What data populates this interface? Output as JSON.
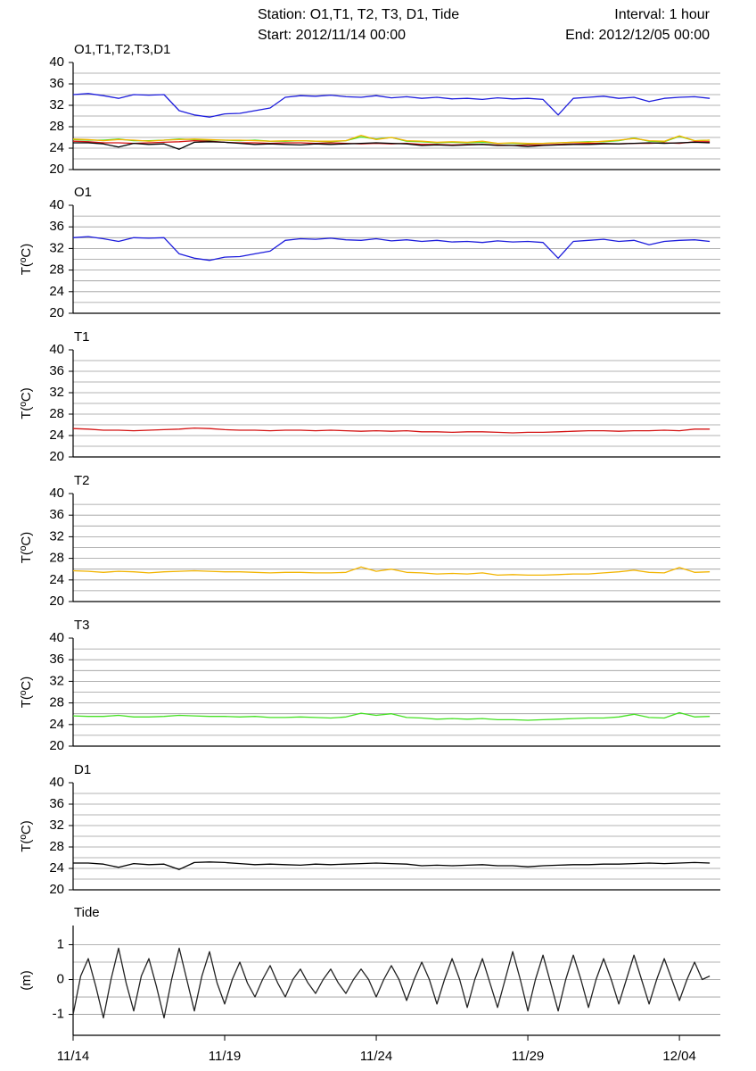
{
  "header": {
    "station": "Station: O1,T1, T2, T3, D1, Tide",
    "interval": "Interval: 1 hour",
    "start": "Start: 2012/11/14 00:00",
    "end": "End: 2012/12/05 00:00"
  },
  "chart_data": [
    {
      "type": "line",
      "title": "O1,T1,T2,T3,D1",
      "x": [
        0,
        0.5,
        1,
        1.5,
        2,
        2.5,
        3,
        3.5,
        4,
        4.5,
        5,
        5.5,
        6,
        6.5,
        7,
        7.5,
        8,
        8.5,
        9,
        9.5,
        10,
        10.5,
        11,
        11.5,
        12,
        12.5,
        13,
        13.5,
        14,
        14.5,
        15,
        15.5,
        16,
        16.5,
        17,
        17.5,
        18,
        18.5,
        19,
        19.5,
        20,
        20.5,
        21
      ],
      "series": [
        {
          "color": "#1c1cdc",
          "values": [
            34,
            34.2,
            33.8,
            33.3,
            34,
            33.9,
            34,
            31,
            30.2,
            29.8,
            30.4,
            30.5,
            31,
            31.5,
            33.5,
            33.8,
            33.7,
            33.9,
            33.6,
            33.5,
            33.8,
            33.4,
            33.6,
            33.3,
            33.5,
            33.2,
            33.3,
            33.1,
            33.4,
            33.2,
            33.3,
            33.1,
            30.2,
            33.3,
            33.5,
            33.7,
            33.3,
            33.5,
            32.7,
            33.3,
            33.5,
            33.6,
            33.3
          ]
        },
        {
          "color": "#44e022",
          "values": [
            25.6,
            25.5,
            25.5,
            25.7,
            25.4,
            25.4,
            25.5,
            25.7,
            25.6,
            25.5,
            25.5,
            25.4,
            25.5,
            25.3,
            25.3,
            25.4,
            25.3,
            25.2,
            25.4,
            26.1,
            25.7,
            26,
            25.3,
            25.2,
            25,
            25.1,
            25,
            25.1,
            24.9,
            24.9,
            24.8,
            24.9,
            25,
            25.1,
            25.2,
            25.2,
            25.4,
            25.9,
            25.3,
            25.2,
            26.2,
            25.4,
            25.5
          ]
        },
        {
          "color": "#f2b400",
          "values": [
            25.7,
            25.6,
            25.4,
            25.6,
            25.5,
            25.3,
            25.5,
            25.6,
            25.7,
            25.6,
            25.5,
            25.5,
            25.4,
            25.3,
            25.4,
            25.4,
            25.3,
            25.3,
            25.4,
            26.4,
            25.6,
            26,
            25.4,
            25.3,
            25.1,
            25.2,
            25.1,
            25.3,
            24.9,
            25,
            24.9,
            24.9,
            25,
            25.1,
            25.1,
            25.3,
            25.5,
            25.8,
            25.4,
            25.3,
            26.3,
            25.4,
            25.5
          ]
        },
        {
          "color": "#d41414",
          "values": [
            25.3,
            25.2,
            25,
            25,
            24.9,
            25,
            25.1,
            25.2,
            25.4,
            25.3,
            25.1,
            25,
            25,
            24.9,
            25,
            25,
            24.9,
            25,
            24.9,
            24.8,
            24.9,
            24.8,
            24.9,
            24.7,
            24.7,
            24.6,
            24.7,
            24.7,
            24.6,
            24.5,
            24.6,
            24.6,
            24.7,
            24.8,
            24.9,
            24.9,
            24.8,
            24.9,
            24.9,
            25,
            24.9,
            25.2,
            25.2
          ]
        },
        {
          "color": "#000000",
          "values": [
            25,
            25,
            24.8,
            24.2,
            24.9,
            24.7,
            24.8,
            23.8,
            25.1,
            25.2,
            25.1,
            24.9,
            24.7,
            24.8,
            24.7,
            24.6,
            24.8,
            24.7,
            24.8,
            24.9,
            25,
            24.9,
            24.8,
            24.5,
            24.6,
            24.5,
            24.6,
            24.7,
            24.5,
            24.5,
            24.3,
            24.5,
            24.6,
            24.7,
            24.7,
            24.8,
            24.8,
            24.9,
            25,
            24.9,
            25,
            25.1,
            25
          ]
        }
      ],
      "xlim": [
        0,
        21.35
      ],
      "ylim": [
        20,
        40
      ],
      "yticks": [
        20,
        24,
        28,
        32,
        36,
        40
      ],
      "ygrid": [
        22,
        24,
        26,
        28,
        30,
        32,
        34,
        36,
        38
      ]
    },
    {
      "type": "line",
      "title": "O1",
      "y_label": "T(ºC)",
      "x": [
        0,
        0.5,
        1,
        1.5,
        2,
        2.5,
        3,
        3.5,
        4,
        4.5,
        5,
        5.5,
        6,
        6.5,
        7,
        7.5,
        8,
        8.5,
        9,
        9.5,
        10,
        10.5,
        11,
        11.5,
        12,
        12.5,
        13,
        13.5,
        14,
        14.5,
        15,
        15.5,
        16,
        16.5,
        17,
        17.5,
        18,
        18.5,
        19,
        19.5,
        20,
        20.5,
        21
      ],
      "series": [
        {
          "color": "#1c1cdc",
          "values": [
            34,
            34.2,
            33.8,
            33.3,
            34,
            33.9,
            34,
            31,
            30.2,
            29.8,
            30.4,
            30.5,
            31,
            31.5,
            33.5,
            33.8,
            33.7,
            33.9,
            33.6,
            33.5,
            33.8,
            33.4,
            33.6,
            33.3,
            33.5,
            33.2,
            33.3,
            33.1,
            33.4,
            33.2,
            33.3,
            33.1,
            30.2,
            33.3,
            33.5,
            33.7,
            33.3,
            33.5,
            32.7,
            33.3,
            33.5,
            33.6,
            33.3
          ]
        }
      ],
      "xlim": [
        0,
        21.35
      ],
      "ylim": [
        20,
        40
      ],
      "yticks": [
        20,
        24,
        28,
        32,
        36,
        40
      ],
      "ygrid": [
        22,
        24,
        26,
        28,
        30,
        32,
        34,
        36,
        38
      ]
    },
    {
      "type": "line",
      "title": "T1",
      "y_label": "T(ºC)",
      "x": [
        0,
        0.5,
        1,
        1.5,
        2,
        2.5,
        3,
        3.5,
        4,
        4.5,
        5,
        5.5,
        6,
        6.5,
        7,
        7.5,
        8,
        8.5,
        9,
        9.5,
        10,
        10.5,
        11,
        11.5,
        12,
        12.5,
        13,
        13.5,
        14,
        14.5,
        15,
        15.5,
        16,
        16.5,
        17,
        17.5,
        18,
        18.5,
        19,
        19.5,
        20,
        20.5,
        21
      ],
      "series": [
        {
          "color": "#d41414",
          "values": [
            25.3,
            25.2,
            25,
            25,
            24.9,
            25,
            25.1,
            25.2,
            25.4,
            25.3,
            25.1,
            25,
            25,
            24.9,
            25,
            25,
            24.9,
            25,
            24.9,
            24.8,
            24.9,
            24.8,
            24.9,
            24.7,
            24.7,
            24.6,
            24.7,
            24.7,
            24.6,
            24.5,
            24.6,
            24.6,
            24.7,
            24.8,
            24.9,
            24.9,
            24.8,
            24.9,
            24.9,
            25,
            24.9,
            25.2,
            25.2
          ]
        }
      ],
      "xlim": [
        0,
        21.35
      ],
      "ylim": [
        20,
        40
      ],
      "yticks": [
        20,
        24,
        28,
        32,
        36,
        40
      ],
      "ygrid": [
        22,
        24,
        26,
        28,
        30,
        32,
        34,
        36,
        38
      ]
    },
    {
      "type": "line",
      "title": "T2",
      "y_label": "T(ºC)",
      "x": [
        0,
        0.5,
        1,
        1.5,
        2,
        2.5,
        3,
        3.5,
        4,
        4.5,
        5,
        5.5,
        6,
        6.5,
        7,
        7.5,
        8,
        8.5,
        9,
        9.5,
        10,
        10.5,
        11,
        11.5,
        12,
        12.5,
        13,
        13.5,
        14,
        14.5,
        15,
        15.5,
        16,
        16.5,
        17,
        17.5,
        18,
        18.5,
        19,
        19.5,
        20,
        20.5,
        21
      ],
      "series": [
        {
          "color": "#f2b400",
          "values": [
            25.7,
            25.6,
            25.4,
            25.6,
            25.5,
            25.3,
            25.5,
            25.6,
            25.7,
            25.6,
            25.5,
            25.5,
            25.4,
            25.3,
            25.4,
            25.4,
            25.3,
            25.3,
            25.4,
            26.4,
            25.6,
            26,
            25.4,
            25.3,
            25.1,
            25.2,
            25.1,
            25.3,
            24.9,
            25,
            24.9,
            24.9,
            25,
            25.1,
            25.1,
            25.3,
            25.5,
            25.8,
            25.4,
            25.3,
            26.3,
            25.4,
            25.5
          ]
        }
      ],
      "xlim": [
        0,
        21.35
      ],
      "ylim": [
        20,
        40
      ],
      "yticks": [
        20,
        24,
        28,
        32,
        36,
        40
      ],
      "ygrid": [
        22,
        24,
        26,
        28,
        30,
        32,
        34,
        36,
        38
      ]
    },
    {
      "type": "line",
      "title": "T3",
      "y_label": "T(ºC)",
      "x": [
        0,
        0.5,
        1,
        1.5,
        2,
        2.5,
        3,
        3.5,
        4,
        4.5,
        5,
        5.5,
        6,
        6.5,
        7,
        7.5,
        8,
        8.5,
        9,
        9.5,
        10,
        10.5,
        11,
        11.5,
        12,
        12.5,
        13,
        13.5,
        14,
        14.5,
        15,
        15.5,
        16,
        16.5,
        17,
        17.5,
        18,
        18.5,
        19,
        19.5,
        20,
        20.5,
        21
      ],
      "series": [
        {
          "color": "#44e022",
          "values": [
            25.6,
            25.5,
            25.5,
            25.7,
            25.4,
            25.4,
            25.5,
            25.7,
            25.6,
            25.5,
            25.5,
            25.4,
            25.5,
            25.3,
            25.3,
            25.4,
            25.3,
            25.2,
            25.4,
            26.1,
            25.7,
            26,
            25.3,
            25.2,
            25,
            25.1,
            25,
            25.1,
            24.9,
            24.9,
            24.8,
            24.9,
            25,
            25.1,
            25.2,
            25.2,
            25.4,
            25.9,
            25.3,
            25.2,
            26.2,
            25.4,
            25.5
          ]
        }
      ],
      "xlim": [
        0,
        21.35
      ],
      "ylim": [
        20,
        40
      ],
      "yticks": [
        20,
        24,
        28,
        32,
        36,
        40
      ],
      "ygrid": [
        22,
        24,
        26,
        28,
        30,
        32,
        34,
        36,
        38
      ]
    },
    {
      "type": "line",
      "title": "D1",
      "y_label": "T(ºC)",
      "x": [
        0,
        0.5,
        1,
        1.5,
        2,
        2.5,
        3,
        3.5,
        4,
        4.5,
        5,
        5.5,
        6,
        6.5,
        7,
        7.5,
        8,
        8.5,
        9,
        9.5,
        10,
        10.5,
        11,
        11.5,
        12,
        12.5,
        13,
        13.5,
        14,
        14.5,
        15,
        15.5,
        16,
        16.5,
        17,
        17.5,
        18,
        18.5,
        19,
        19.5,
        20,
        20.5,
        21
      ],
      "series": [
        {
          "color": "#000000",
          "values": [
            25,
            25,
            24.8,
            24.2,
            24.9,
            24.7,
            24.8,
            23.8,
            25.1,
            25.2,
            25.1,
            24.9,
            24.7,
            24.8,
            24.7,
            24.6,
            24.8,
            24.7,
            24.8,
            24.9,
            25,
            24.9,
            24.8,
            24.5,
            24.6,
            24.5,
            24.6,
            24.7,
            24.5,
            24.5,
            24.3,
            24.5,
            24.6,
            24.7,
            24.7,
            24.8,
            24.8,
            24.9,
            25,
            24.9,
            25,
            25.1,
            25
          ]
        }
      ],
      "xlim": [
        0,
        21.35
      ],
      "ylim": [
        20,
        40
      ],
      "yticks": [
        20,
        24,
        28,
        32,
        36,
        40
      ],
      "ygrid": [
        22,
        24,
        26,
        28,
        30,
        32,
        34,
        36,
        38
      ]
    },
    {
      "type": "line",
      "title": "Tide",
      "y_label": "(m)",
      "x": [
        0,
        0.25,
        0.5,
        0.75,
        1,
        1.25,
        1.5,
        1.75,
        2,
        2.25,
        2.5,
        2.75,
        3,
        3.25,
        3.5,
        3.75,
        4,
        4.25,
        4.5,
        4.75,
        5,
        5.25,
        5.5,
        5.75,
        6,
        6.25,
        6.5,
        6.75,
        7,
        7.25,
        7.5,
        7.75,
        8,
        8.25,
        8.5,
        8.75,
        9,
        9.25,
        9.5,
        9.75,
        10,
        10.25,
        10.5,
        10.75,
        11,
        11.25,
        11.5,
        11.75,
        12,
        12.25,
        12.5,
        12.75,
        13,
        13.25,
        13.5,
        13.75,
        14,
        14.25,
        14.5,
        14.75,
        15,
        15.25,
        15.5,
        15.75,
        16,
        16.25,
        16.5,
        16.75,
        17,
        17.25,
        17.5,
        17.75,
        18,
        18.25,
        18.5,
        18.75,
        19,
        19.25,
        19.5,
        19.75,
        20,
        20.25,
        20.5,
        20.75,
        21
      ],
      "series": [
        {
          "color": "#222222",
          "values": [
            -1.0,
            0.1,
            0.6,
            -0.2,
            -1.1,
            0.0,
            0.9,
            -0.1,
            -0.9,
            0.1,
            0.6,
            -0.2,
            -1.1,
            0.0,
            0.9,
            0.0,
            -0.9,
            0.1,
            0.8,
            -0.1,
            -0.7,
            0.0,
            0.5,
            -0.1,
            -0.5,
            0.0,
            0.4,
            -0.1,
            -0.5,
            0.0,
            0.3,
            -0.1,
            -0.4,
            0.0,
            0.3,
            -0.1,
            -0.4,
            0.0,
            0.3,
            0.0,
            -0.5,
            0.0,
            0.4,
            0.0,
            -0.6,
            0.0,
            0.5,
            0.0,
            -0.7,
            0.0,
            0.6,
            0.0,
            -0.8,
            0.0,
            0.6,
            -0.1,
            -0.8,
            0.0,
            0.8,
            0.0,
            -0.9,
            0.0,
            0.7,
            -0.1,
            -0.9,
            0.0,
            0.7,
            0.0,
            -0.8,
            0.0,
            0.6,
            0.0,
            -0.7,
            0.0,
            0.7,
            0.0,
            -0.7,
            0.0,
            0.6,
            0.0,
            -0.6,
            0.0,
            0.5,
            0.0,
            0.1
          ]
        }
      ],
      "xlim": [
        0,
        21.35
      ],
      "ylim": [
        -1.6,
        1.55
      ],
      "yticks": [
        -1,
        0,
        1
      ],
      "ygrid": [
        -1,
        -0.5,
        0,
        0.5,
        1
      ],
      "xticks": [
        {
          "value": 0,
          "label": "11/14"
        },
        {
          "value": 5,
          "label": "11/19"
        },
        {
          "value": 10,
          "label": "11/24"
        },
        {
          "value": 15,
          "label": "11/29"
        },
        {
          "value": 20,
          "label": "12/04"
        }
      ]
    }
  ]
}
